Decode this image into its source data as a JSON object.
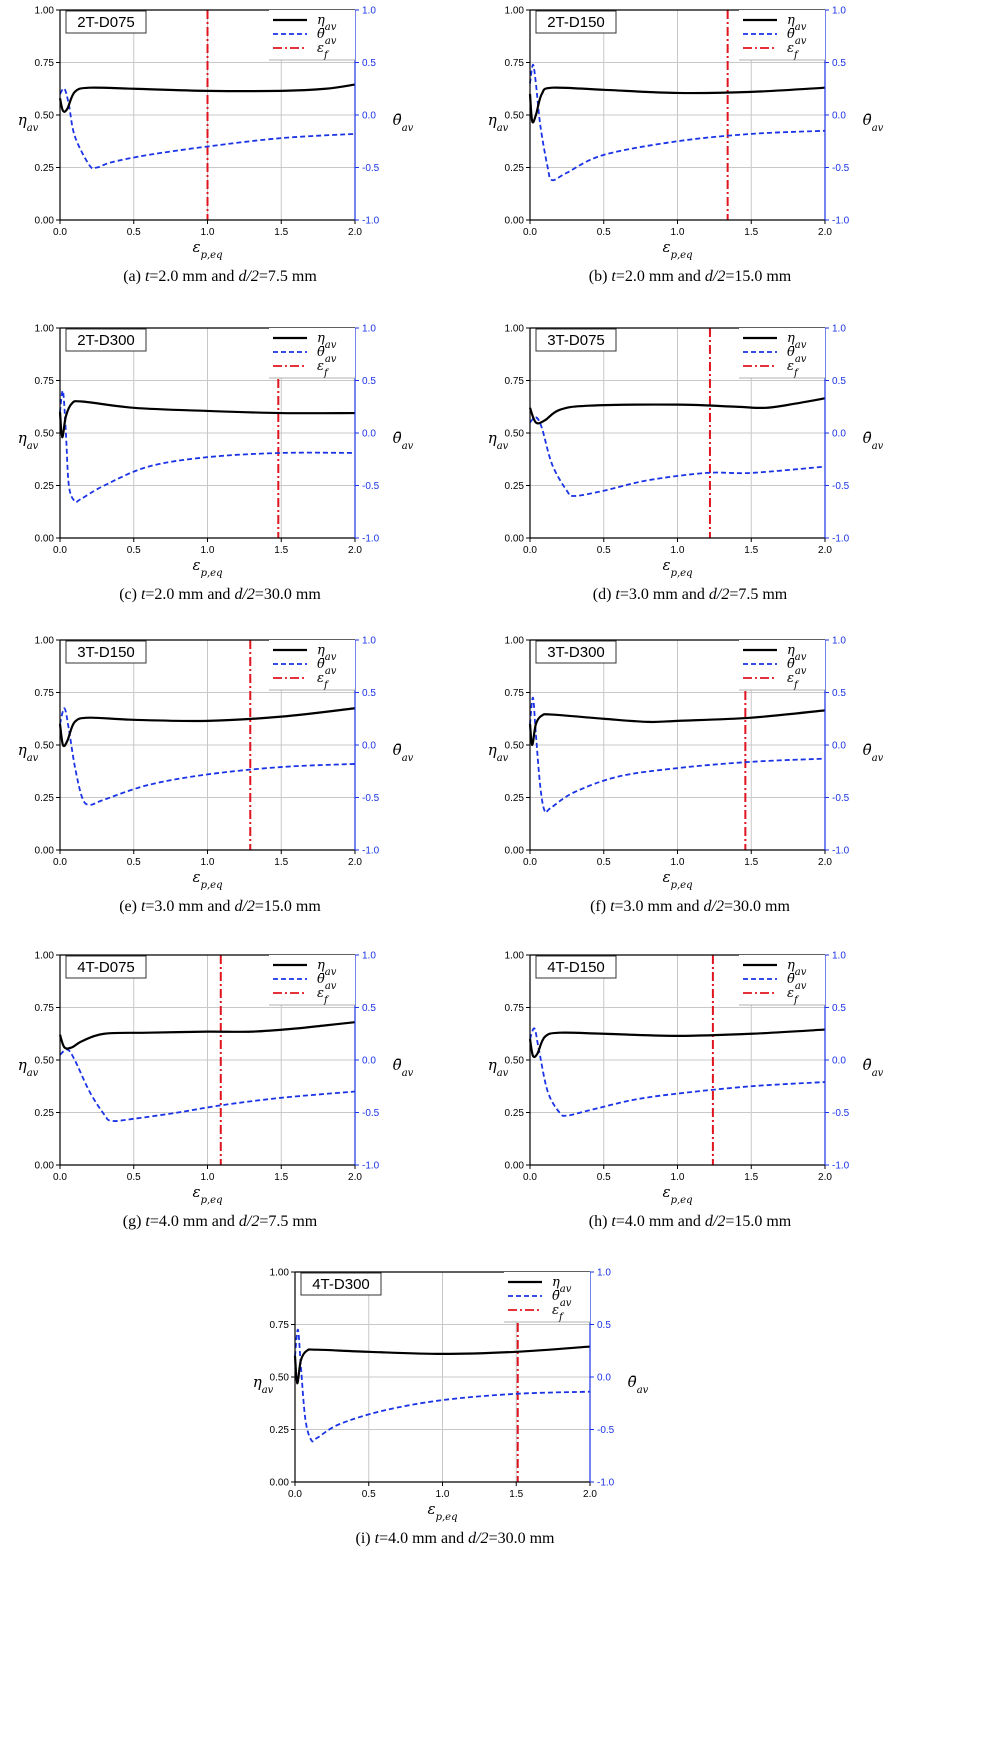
{
  "chart_data": [
    {
      "type": "line",
      "label": "2T-D075",
      "caption": {
        "letter": "(a)",
        "t_sym": "t",
        "t_val": "=2.0 mm",
        "and": "and",
        "d_sym": "d/2",
        "d_val": "=7.5 mm"
      },
      "xlabel": "ε",
      "xlabel_sub": "p,eq",
      "ylabel": "η",
      "ylabel_sub": "av",
      "y2label": "θ̄",
      "y2label_sub": "av",
      "xlim": [
        0,
        2.0
      ],
      "ylim": [
        0,
        1.0
      ],
      "y2lim": [
        -1.0,
        1.0
      ],
      "xticks": [
        "0.0",
        "0.5",
        "1.0",
        "1.5",
        "2.0"
      ],
      "yticks": [
        "0.00",
        "0.25",
        "0.50",
        "0.75",
        "1.00"
      ],
      "y2ticks": [
        "-1.0",
        "-0.5",
        "0.0",
        "0.5",
        "1.0"
      ],
      "legend": [
        "η",
        "θ̄",
        "ε"
      ],
      "legend_sub": [
        "av",
        "av",
        "f"
      ],
      "grid": true,
      "fracture_strain": 1.0,
      "eta": [
        [
          0,
          0.58
        ],
        [
          0.02,
          0.52
        ],
        [
          0.05,
          0.53
        ],
        [
          0.1,
          0.61
        ],
        [
          0.2,
          0.63
        ],
        [
          0.5,
          0.625
        ],
        [
          1.0,
          0.615
        ],
        [
          1.5,
          0.615
        ],
        [
          1.8,
          0.625
        ],
        [
          2.0,
          0.645
        ]
      ],
      "theta": [
        [
          0,
          0.2
        ],
        [
          0.03,
          0.25
        ],
        [
          0.06,
          0.1
        ],
        [
          0.1,
          -0.2
        ],
        [
          0.2,
          -0.48
        ],
        [
          0.25,
          -0.5
        ],
        [
          0.35,
          -0.45
        ],
        [
          0.6,
          -0.38
        ],
        [
          1.0,
          -0.3
        ],
        [
          1.5,
          -0.22
        ],
        [
          2.0,
          -0.18
        ]
      ]
    },
    {
      "type": "line",
      "label": "2T-D150",
      "caption": {
        "letter": "(b)",
        "t_sym": "t",
        "t_val": "=2.0 mm",
        "and": "and",
        "d_sym": "d/2",
        "d_val": "=15.0 mm"
      },
      "xlabel": "ε",
      "xlabel_sub": "p,eq",
      "ylabel": "η",
      "ylabel_sub": "av",
      "y2label": "θ̄",
      "y2label_sub": "av",
      "xlim": [
        0,
        2.0
      ],
      "ylim": [
        0,
        1.0
      ],
      "y2lim": [
        -1.0,
        1.0
      ],
      "xticks": [
        "0.0",
        "0.5",
        "1.0",
        "1.5",
        "2.0"
      ],
      "yticks": [
        "0.00",
        "0.25",
        "0.50",
        "0.75",
        "1.00"
      ],
      "y2ticks": [
        "-1.0",
        "-0.5",
        "0.0",
        "0.5",
        "1.0"
      ],
      "legend": [
        "η",
        "θ̄",
        "ε"
      ],
      "legend_sub": [
        "av",
        "av",
        "f"
      ],
      "grid": true,
      "fracture_strain": 1.34,
      "eta": [
        [
          0,
          0.6
        ],
        [
          0.015,
          0.47
        ],
        [
          0.04,
          0.5
        ],
        [
          0.08,
          0.6
        ],
        [
          0.15,
          0.63
        ],
        [
          0.5,
          0.62
        ],
        [
          1.0,
          0.605
        ],
        [
          1.5,
          0.61
        ],
        [
          2.0,
          0.63
        ]
      ],
      "theta": [
        [
          0,
          0.3
        ],
        [
          0.02,
          0.48
        ],
        [
          0.04,
          0.3
        ],
        [
          0.07,
          -0.1
        ],
        [
          0.12,
          -0.5
        ],
        [
          0.15,
          -0.62
        ],
        [
          0.25,
          -0.55
        ],
        [
          0.5,
          -0.38
        ],
        [
          1.0,
          -0.25
        ],
        [
          1.5,
          -0.18
        ],
        [
          2.0,
          -0.15
        ]
      ]
    },
    {
      "type": "line",
      "label": "2T-D300",
      "caption": {
        "letter": "(c)",
        "t_sym": "t",
        "t_val": "=2.0 mm",
        "and": "and",
        "d_sym": "d/2",
        "d_val": "=30.0 mm"
      },
      "xlabel": "ε",
      "xlabel_sub": "p,eq",
      "ylabel": "η",
      "ylabel_sub": "av",
      "y2label": "θ̄",
      "y2label_sub": "av",
      "xlim": [
        0,
        2.0
      ],
      "ylim": [
        0,
        1.0
      ],
      "y2lim": [
        -1.0,
        1.0
      ],
      "xticks": [
        "0.0",
        "0.5",
        "1.0",
        "1.5",
        "2.0"
      ],
      "yticks": [
        "0.00",
        "0.25",
        "0.50",
        "0.75",
        "1.00"
      ],
      "y2ticks": [
        "-1.0",
        "-0.5",
        "0.0",
        "0.5",
        "1.0"
      ],
      "legend": [
        "η",
        "θ̄",
        "ε"
      ],
      "legend_sub": [
        "av",
        "av",
        "f"
      ],
      "grid": true,
      "fracture_strain": 1.48,
      "eta": [
        [
          0,
          0.6
        ],
        [
          0.015,
          0.48
        ],
        [
          0.04,
          0.58
        ],
        [
          0.08,
          0.64
        ],
        [
          0.15,
          0.65
        ],
        [
          0.5,
          0.62
        ],
        [
          1.0,
          0.605
        ],
        [
          1.5,
          0.595
        ],
        [
          2.0,
          0.595
        ]
      ],
      "theta": [
        [
          0,
          0.2
        ],
        [
          0.02,
          0.4
        ],
        [
          0.04,
          0.0
        ],
        [
          0.06,
          -0.5
        ],
        [
          0.1,
          -0.65
        ],
        [
          0.14,
          -0.63
        ],
        [
          0.3,
          -0.5
        ],
        [
          0.6,
          -0.32
        ],
        [
          1.0,
          -0.23
        ],
        [
          1.5,
          -0.19
        ],
        [
          2.0,
          -0.19
        ]
      ]
    },
    {
      "type": "line",
      "label": "3T-D075",
      "caption": {
        "letter": "(d)",
        "t_sym": "t",
        "t_val": "=3.0 mm",
        "and": "and",
        "d_sym": "d/2",
        "d_val": "=7.5 mm"
      },
      "xlabel": "ε",
      "xlabel_sub": "p,eq",
      "ylabel": "η",
      "ylabel_sub": "av",
      "y2label": "θ̄",
      "y2label_sub": "av",
      "xlim": [
        0,
        2.0
      ],
      "ylim": [
        0,
        1.0
      ],
      "y2lim": [
        -1.0,
        1.0
      ],
      "xticks": [
        "0.0",
        "0.5",
        "1.0",
        "1.5",
        "2.0"
      ],
      "yticks": [
        "0.00",
        "0.25",
        "0.50",
        "0.75",
        "1.00"
      ],
      "y2ticks": [
        "-1.0",
        "-0.5",
        "0.0",
        "0.5",
        "1.0"
      ],
      "legend": [
        "η",
        "θ̄",
        "ε"
      ],
      "legend_sub": [
        "av",
        "av",
        "f"
      ],
      "grid": true,
      "fracture_strain": 1.22,
      "eta": [
        [
          0,
          0.62
        ],
        [
          0.04,
          0.55
        ],
        [
          0.1,
          0.56
        ],
        [
          0.2,
          0.61
        ],
        [
          0.4,
          0.63
        ],
        [
          1.0,
          0.635
        ],
        [
          1.4,
          0.625
        ],
        [
          1.6,
          0.62
        ],
        [
          1.8,
          0.64
        ],
        [
          2.0,
          0.665
        ]
      ],
      "theta": [
        [
          0,
          0.1
        ],
        [
          0.04,
          0.15
        ],
        [
          0.08,
          0.05
        ],
        [
          0.15,
          -0.3
        ],
        [
          0.25,
          -0.55
        ],
        [
          0.3,
          -0.6
        ],
        [
          0.5,
          -0.55
        ],
        [
          0.8,
          -0.45
        ],
        [
          1.2,
          -0.38
        ],
        [
          1.5,
          -0.38
        ],
        [
          2.0,
          -0.32
        ]
      ]
    },
    {
      "type": "line",
      "label": "3T-D150",
      "caption": {
        "letter": "(e)",
        "t_sym": "t",
        "t_val": "=3.0 mm",
        "and": "and",
        "d_sym": "d/2",
        "d_val": "=15.0 mm"
      },
      "xlabel": "ε",
      "xlabel_sub": "p,eq",
      "ylabel": "η",
      "ylabel_sub": "av",
      "y2label": "θ̄",
      "y2label_sub": "av",
      "xlim": [
        0,
        2.0
      ],
      "ylim": [
        0,
        1.0
      ],
      "y2lim": [
        -1.0,
        1.0
      ],
      "xticks": [
        "0.0",
        "0.5",
        "1.0",
        "1.5",
        "2.0"
      ],
      "yticks": [
        "0.00",
        "0.25",
        "0.50",
        "0.75",
        "1.00"
      ],
      "y2ticks": [
        "-1.0",
        "-0.5",
        "0.0",
        "0.5",
        "1.0"
      ],
      "legend": [
        "η",
        "θ̄",
        "ε"
      ],
      "legend_sub": [
        "av",
        "av",
        "f"
      ],
      "grid": true,
      "fracture_strain": 1.29,
      "eta": [
        [
          0,
          0.6
        ],
        [
          0.02,
          0.5
        ],
        [
          0.05,
          0.52
        ],
        [
          0.1,
          0.61
        ],
        [
          0.2,
          0.63
        ],
        [
          0.5,
          0.62
        ],
        [
          1.0,
          0.615
        ],
        [
          1.5,
          0.635
        ],
        [
          2.0,
          0.675
        ]
      ],
      "theta": [
        [
          0,
          0.2
        ],
        [
          0.03,
          0.35
        ],
        [
          0.06,
          0.15
        ],
        [
          0.1,
          -0.2
        ],
        [
          0.15,
          -0.5
        ],
        [
          0.2,
          -0.57
        ],
        [
          0.3,
          -0.52
        ],
        [
          0.6,
          -0.38
        ],
        [
          1.0,
          -0.28
        ],
        [
          1.5,
          -0.21
        ],
        [
          2.0,
          -0.18
        ]
      ]
    },
    {
      "type": "line",
      "label": "3T-D300",
      "caption": {
        "letter": "(f)",
        "t_sym": "t",
        "t_val": "=3.0 mm",
        "and": "and",
        "d_sym": "d/2",
        "d_val": "=30.0 mm"
      },
      "xlabel": "ε",
      "xlabel_sub": "p,eq",
      "ylabel": "η",
      "ylabel_sub": "av",
      "y2label": "θ̄",
      "y2label_sub": "av",
      "xlim": [
        0,
        2.0
      ],
      "ylim": [
        0,
        1.0
      ],
      "y2lim": [
        -1.0,
        1.0
      ],
      "xticks": [
        "0.0",
        "0.5",
        "1.0",
        "1.5",
        "2.0"
      ],
      "yticks": [
        "0.00",
        "0.25",
        "0.50",
        "0.75",
        "1.00"
      ],
      "y2ticks": [
        "-1.0",
        "-0.5",
        "0.0",
        "0.5",
        "1.0"
      ],
      "legend": [
        "η",
        "θ̄",
        "ε"
      ],
      "legend_sub": [
        "av",
        "av",
        "f"
      ],
      "grid": true,
      "fracture_strain": 1.46,
      "eta": [
        [
          0,
          0.6
        ],
        [
          0.015,
          0.5
        ],
        [
          0.04,
          0.6
        ],
        [
          0.08,
          0.64
        ],
        [
          0.15,
          0.645
        ],
        [
          0.5,
          0.625
        ],
        [
          0.8,
          0.61
        ],
        [
          1.0,
          0.615
        ],
        [
          1.5,
          0.63
        ],
        [
          2.0,
          0.665
        ]
      ],
      "theta": [
        [
          0,
          0.2
        ],
        [
          0.02,
          0.45
        ],
        [
          0.04,
          0.1
        ],
        [
          0.07,
          -0.4
        ],
        [
          0.1,
          -0.63
        ],
        [
          0.14,
          -0.6
        ],
        [
          0.3,
          -0.45
        ],
        [
          0.6,
          -0.3
        ],
        [
          1.0,
          -0.22
        ],
        [
          1.5,
          -0.16
        ],
        [
          2.0,
          -0.13
        ]
      ]
    },
    {
      "type": "line",
      "label": "4T-D075",
      "caption": {
        "letter": "(g)",
        "t_sym": "t",
        "t_val": "=4.0 mm",
        "and": "and",
        "d_sym": "d/2",
        "d_val": "=7.5 mm"
      },
      "xlabel": "ε",
      "xlabel_sub": "p,eq",
      "ylabel": "η",
      "ylabel_sub": "av",
      "y2label": "θ̄",
      "y2label_sub": "av",
      "xlim": [
        0,
        2.0
      ],
      "ylim": [
        0,
        1.0
      ],
      "y2lim": [
        -1.0,
        1.0
      ],
      "xticks": [
        "0.0",
        "0.5",
        "1.0",
        "1.5",
        "2.0"
      ],
      "yticks": [
        "0.00",
        "0.25",
        "0.50",
        "0.75",
        "1.00"
      ],
      "y2ticks": [
        "-1.0",
        "-0.5",
        "0.0",
        "0.5",
        "1.0"
      ],
      "legend": [
        "η",
        "θ̄",
        "ε"
      ],
      "legend_sub": [
        "av",
        "av",
        "f"
      ],
      "grid": true,
      "fracture_strain": 1.09,
      "eta": [
        [
          0,
          0.62
        ],
        [
          0.03,
          0.56
        ],
        [
          0.08,
          0.56
        ],
        [
          0.15,
          0.59
        ],
        [
          0.3,
          0.625
        ],
        [
          0.6,
          0.63
        ],
        [
          1.0,
          0.635
        ],
        [
          1.3,
          0.635
        ],
        [
          1.6,
          0.65
        ],
        [
          1.8,
          0.665
        ],
        [
          2.0,
          0.68
        ]
      ],
      "theta": [
        [
          0,
          0.05
        ],
        [
          0.05,
          0.1
        ],
        [
          0.1,
          0.0
        ],
        [
          0.2,
          -0.3
        ],
        [
          0.3,
          -0.52
        ],
        [
          0.35,
          -0.58
        ],
        [
          0.5,
          -0.56
        ],
        [
          0.8,
          -0.5
        ],
        [
          1.1,
          -0.43
        ],
        [
          1.5,
          -0.36
        ],
        [
          2.0,
          -0.3
        ]
      ]
    },
    {
      "type": "line",
      "label": "4T-D150",
      "caption": {
        "letter": "(h)",
        "t_sym": "t",
        "t_val": "=4.0 mm",
        "and": "and",
        "d_sym": "d/2",
        "d_val": "=15.0 mm"
      },
      "xlabel": "ε",
      "xlabel_sub": "p,eq",
      "ylabel": "η",
      "ylabel_sub": "av",
      "y2label": "θ̄",
      "y2label_sub": "av",
      "xlim": [
        0,
        2.0
      ],
      "ylim": [
        0,
        1.0
      ],
      "y2lim": [
        -1.0,
        1.0
      ],
      "xticks": [
        "0.0",
        "0.5",
        "1.0",
        "1.5",
        "2.0"
      ],
      "yticks": [
        "0.00",
        "0.25",
        "0.50",
        "0.75",
        "1.00"
      ],
      "y2ticks": [
        "-1.0",
        "-0.5",
        "0.0",
        "0.5",
        "1.0"
      ],
      "legend": [
        "η",
        "θ̄",
        "ε"
      ],
      "legend_sub": [
        "av",
        "av",
        "f"
      ],
      "grid": true,
      "fracture_strain": 1.24,
      "eta": [
        [
          0,
          0.6
        ],
        [
          0.02,
          0.52
        ],
        [
          0.05,
          0.53
        ],
        [
          0.1,
          0.61
        ],
        [
          0.2,
          0.63
        ],
        [
          0.5,
          0.625
        ],
        [
          1.0,
          0.615
        ],
        [
          1.5,
          0.625
        ],
        [
          2.0,
          0.645
        ]
      ],
      "theta": [
        [
          0,
          0.2
        ],
        [
          0.03,
          0.3
        ],
        [
          0.06,
          0.1
        ],
        [
          0.12,
          -0.3
        ],
        [
          0.2,
          -0.5
        ],
        [
          0.25,
          -0.53
        ],
        [
          0.4,
          -0.48
        ],
        [
          0.7,
          -0.38
        ],
        [
          1.0,
          -0.32
        ],
        [
          1.5,
          -0.25
        ],
        [
          2.0,
          -0.21
        ]
      ]
    },
    {
      "type": "line",
      "label": "4T-D300",
      "caption": {
        "letter": "(i)",
        "t_sym": "t",
        "t_val": "=4.0 mm",
        "and": "and",
        "d_sym": "d/2",
        "d_val": "=30.0 mm"
      },
      "xlabel": "ε",
      "xlabel_sub": "p,eq",
      "ylabel": "η",
      "ylabel_sub": "av",
      "y2label": "θ̄",
      "y2label_sub": "av",
      "xlim": [
        0,
        2.0
      ],
      "ylim": [
        0,
        1.0
      ],
      "y2lim": [
        -1.0,
        1.0
      ],
      "xticks": [
        "0.0",
        "0.5",
        "1.0",
        "1.5",
        "2.0"
      ],
      "yticks": [
        "0.00",
        "0.25",
        "0.50",
        "0.75",
        "1.00"
      ],
      "y2ticks": [
        "-1.0",
        "-0.5",
        "0.0",
        "0.5",
        "1.0"
      ],
      "legend": [
        "η",
        "θ̄",
        "ε"
      ],
      "legend_sub": [
        "av",
        "av",
        "f"
      ],
      "grid": true,
      "fracture_strain": 1.51,
      "eta": [
        [
          0,
          0.6
        ],
        [
          0.015,
          0.47
        ],
        [
          0.04,
          0.58
        ],
        [
          0.08,
          0.625
        ],
        [
          0.15,
          0.63
        ],
        [
          0.5,
          0.62
        ],
        [
          1.0,
          0.61
        ],
        [
          1.5,
          0.62
        ],
        [
          2.0,
          0.645
        ]
      ],
      "theta": [
        [
          0,
          0.2
        ],
        [
          0.02,
          0.45
        ],
        [
          0.04,
          0.1
        ],
        [
          0.07,
          -0.4
        ],
        [
          0.11,
          -0.6
        ],
        [
          0.15,
          -0.58
        ],
        [
          0.3,
          -0.45
        ],
        [
          0.6,
          -0.32
        ],
        [
          1.0,
          -0.22
        ],
        [
          1.5,
          -0.16
        ],
        [
          2.0,
          -0.14
        ]
      ]
    }
  ],
  "colors": {
    "eta": "#000000",
    "theta": "#1a33e6",
    "fracture": "#e0141e",
    "right_axis": "#1a33e6",
    "grid": "#c8c8c8"
  }
}
